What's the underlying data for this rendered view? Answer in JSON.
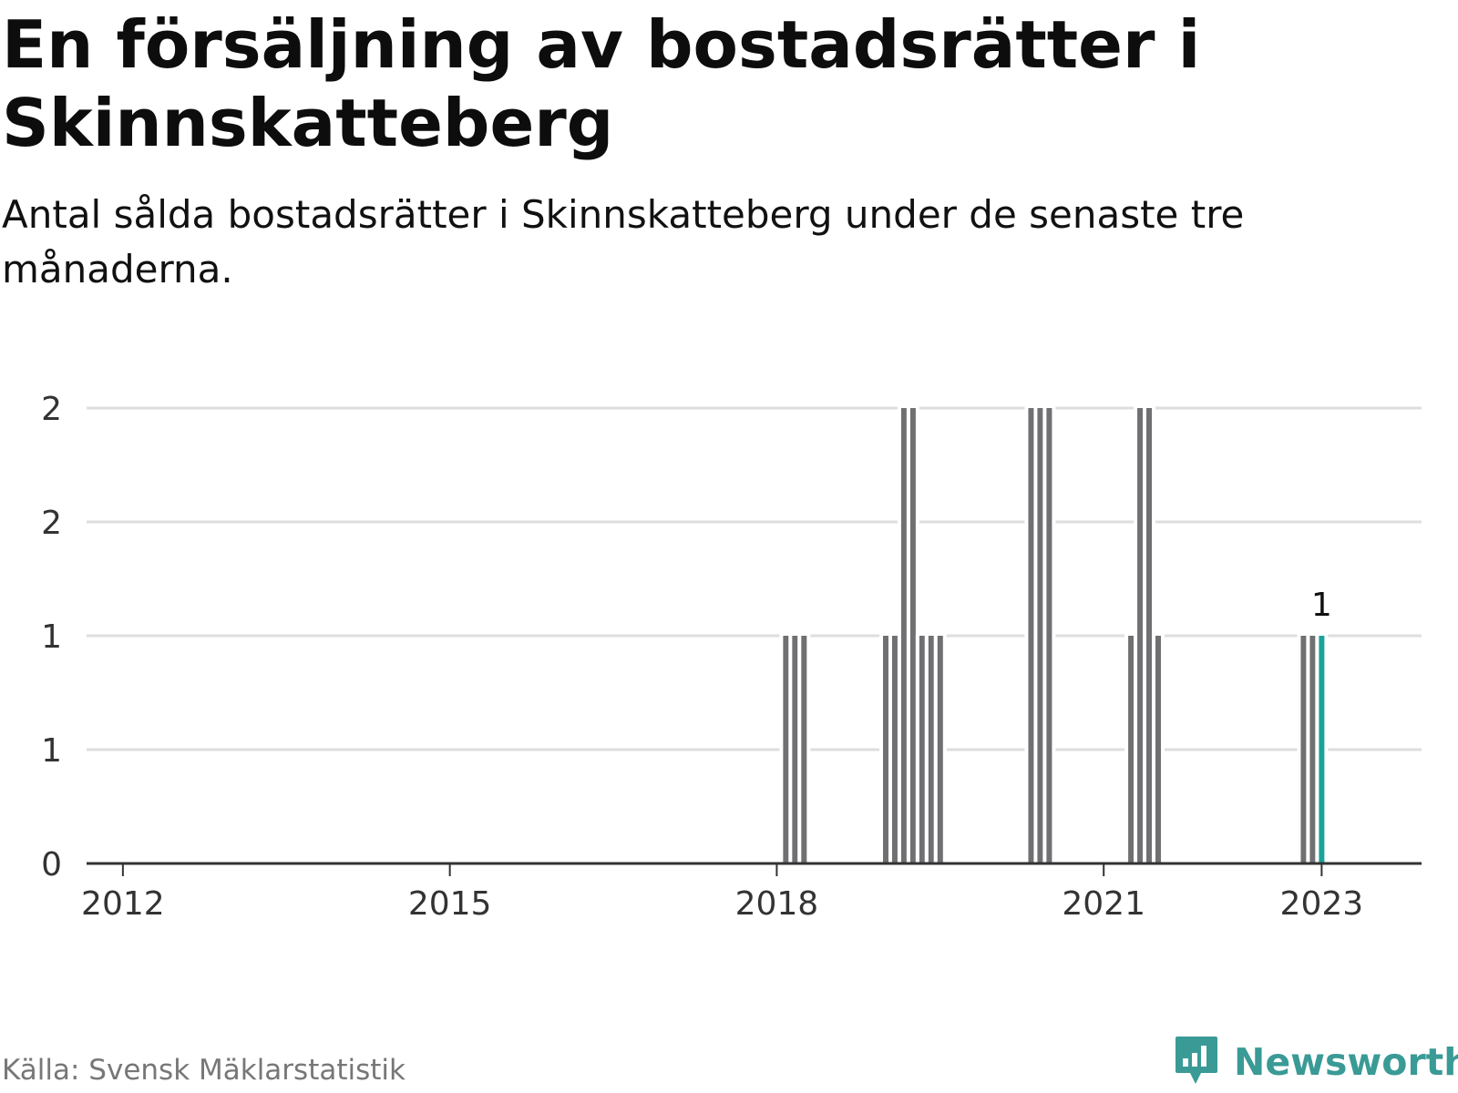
{
  "title": "En försäljning av bostadsrätter i Skinnskatteberg",
  "subtitle": "Antal sålda bostadsrätter i Skinnskatteberg under de senaste tre månaderna.",
  "source": "Källa: Svensk Mäklarstatistik",
  "brand": {
    "name": "Newsworthy",
    "color": "#3a9a96"
  },
  "chart_data": {
    "type": "bar",
    "title": "En försäljning av bostadsrätter i Skinnskatteberg",
    "xlabel": "",
    "ylabel": "",
    "ylim": [
      0,
      2
    ],
    "xlim": [
      "2011-09",
      "2023-12"
    ],
    "yticks": [
      {
        "value": 0,
        "label": "0"
      },
      {
        "value": 0.5,
        "label": "1"
      },
      {
        "value": 1,
        "label": "1"
      },
      {
        "value": 1.5,
        "label": "2"
      },
      {
        "value": 2,
        "label": "2"
      }
    ],
    "xticks": [
      {
        "value": "2012-01",
        "label": "2012"
      },
      {
        "value": "2015-01",
        "label": "2015"
      },
      {
        "value": "2018-01",
        "label": "2018"
      },
      {
        "value": "2021-01",
        "label": "2021"
      },
      {
        "value": "2023-01",
        "label": "2023"
      }
    ],
    "grid": true,
    "bar_color": "#707073",
    "highlight_color": "#1aa39a",
    "series": [
      {
        "x": [
          "2018-02",
          "2018-03",
          "2018-04",
          "2019-01",
          "2019-02",
          "2019-03",
          "2019-04",
          "2019-05",
          "2019-06",
          "2019-07",
          "2020-05",
          "2020-06",
          "2020-07",
          "2021-04",
          "2021-05",
          "2021-06",
          "2021-07",
          "2022-11",
          "2022-12",
          "2023-01"
        ],
        "values": [
          1,
          1,
          1,
          1,
          1,
          2,
          2,
          1,
          1,
          1,
          2,
          2,
          2,
          1,
          2,
          2,
          1,
          1,
          1,
          1
        ]
      }
    ],
    "annotations": [
      {
        "x": "2023-01",
        "label": "1"
      }
    ]
  }
}
